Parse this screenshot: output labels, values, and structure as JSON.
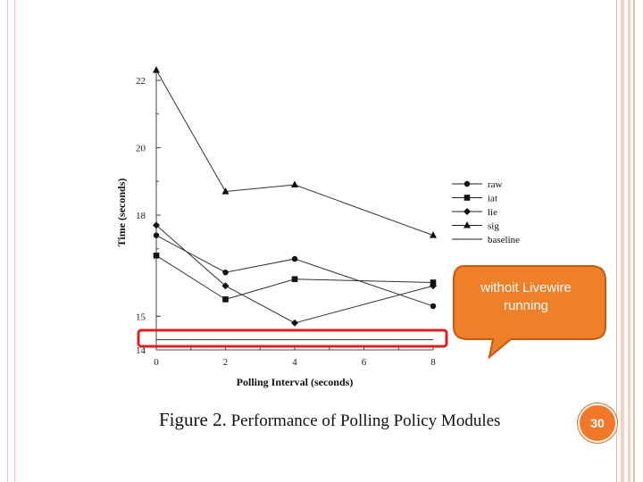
{
  "chart_data": {
    "type": "line",
    "title": "",
    "xlabel": "Polling Interval (seconds)",
    "ylabel": "Time (seconds)",
    "x": [
      0,
      2,
      4,
      8
    ],
    "x_ticks": [
      "0",
      "2",
      "4",
      "6",
      "8"
    ],
    "y_ticks": [
      "14",
      "15",
      "18",
      "20",
      "22"
    ],
    "xlim": [
      0,
      8
    ],
    "ylim": [
      14,
      22
    ],
    "grid": false,
    "legend_position": "right",
    "series": [
      {
        "name": "raw",
        "marker": "circle",
        "values": [
          17.4,
          16.3,
          16.7,
          15.3
        ]
      },
      {
        "name": "iat",
        "marker": "square",
        "values": [
          16.8,
          15.5,
          16.1,
          16.0
        ]
      },
      {
        "name": "lie",
        "marker": "diamond",
        "values": [
          17.7,
          15.9,
          14.8,
          15.9
        ]
      },
      {
        "name": "sig",
        "marker": "triangle",
        "values": [
          22.3,
          18.7,
          18.9,
          17.4
        ]
      },
      {
        "name": "baseline",
        "marker": "none",
        "values": [
          14.3,
          14.3,
          14.3,
          14.3
        ]
      }
    ]
  },
  "caption": {
    "lead": "Figure 2.",
    "text": " Performance of Polling Policy Modules"
  },
  "callout": {
    "text": "withoit Livewire running",
    "fill": "#f07f2a",
    "border": "#c55a11"
  },
  "highlight": {
    "color": "#e02020"
  },
  "page_number": "30"
}
